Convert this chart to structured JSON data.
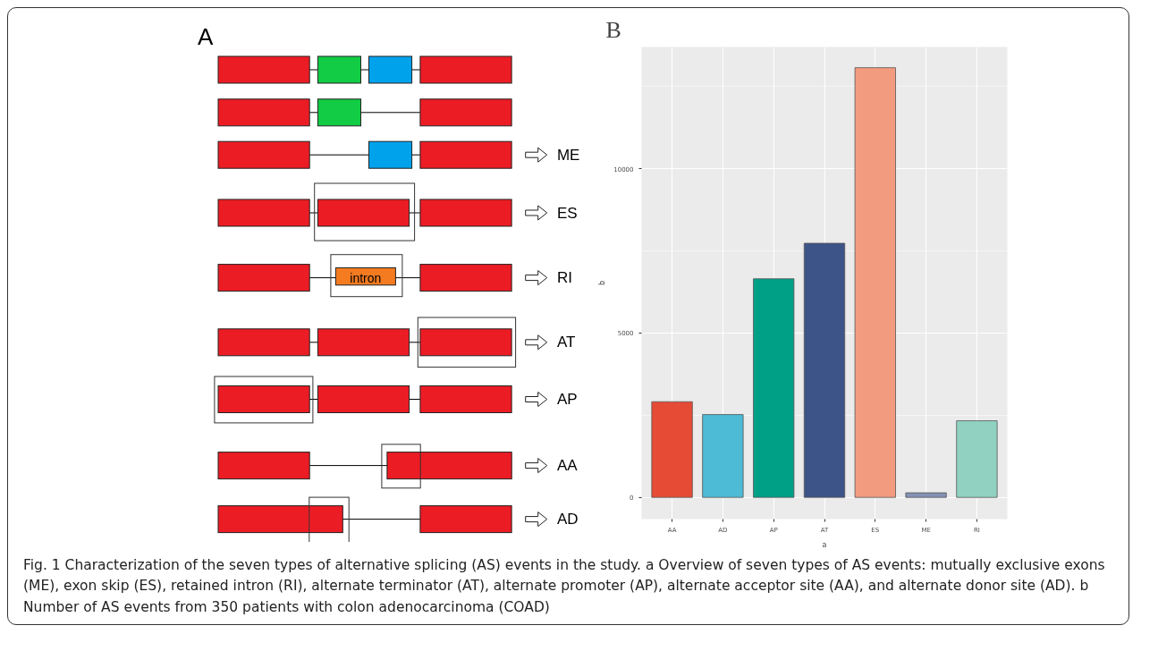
{
  "chart_data": [
    {
      "type": "other",
      "title": "A",
      "annotations": [
        "ME",
        "ES",
        "RI",
        "AT",
        "AP",
        "AA",
        "AD",
        "intron"
      ]
    },
    {
      "type": "bar",
      "title": "B",
      "xlabel": "a",
      "ylabel": "b",
      "categories": [
        "AA",
        "AD",
        "AP",
        "AT",
        "ES",
        "ME",
        "RI"
      ],
      "values": [
        2910,
        2520,
        6650,
        7730,
        13070,
        140,
        2330
      ],
      "colors": [
        "#e64b35",
        "#4dbbd5",
        "#00a087",
        "#3c5488",
        "#f39b7f",
        "#8491b4",
        "#91d1c2"
      ],
      "ylim": [
        -660,
        13700
      ],
      "yticks": [
        0,
        5000,
        10000
      ],
      "grid": true,
      "annotations": [
        "Fig. 1 Characterization of the seven types of alternative splicing (AS) events in the study. a Overview of seven types of AS events: mutually exclusive exons (ME), exon skip (ES), retained intron (RI), alternate terminator (AT), alternate promoter (AP), alternate acceptor site (AA), and alternate donor site (AD). b Number of AS events from 350 patients with colon adenocarcinoma (COAD)"
      ]
    }
  ]
}
